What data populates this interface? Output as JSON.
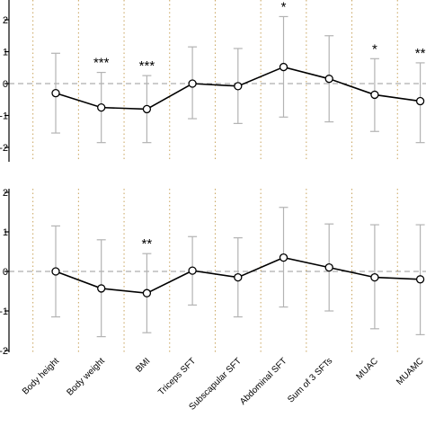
{
  "chart_data": [
    {
      "type": "line",
      "title": "",
      "xlabel": "",
      "ylabel": "",
      "ylim": [
        -2.0,
        2.2
      ],
      "yticks": [
        "-2",
        "-1",
        "0",
        "1",
        "2"
      ],
      "categories": [
        "Body height",
        "Body weight",
        "BMI",
        "Triceps SFT",
        "Subscapular SFT",
        "Abdominal SFT",
        "Sum of 3 SFTs",
        "MUAC",
        "MUAMC"
      ],
      "series": [
        {
          "values": [
            -0.3,
            -0.75,
            -0.8,
            0.0,
            -0.08,
            0.52,
            0.15,
            -0.35,
            -0.55
          ],
          "error_lower": [
            -1.55,
            -1.85,
            -1.85,
            -1.1,
            -1.25,
            -1.05,
            -1.2,
            -1.5,
            -1.85
          ],
          "error_upper": [
            0.95,
            0.35,
            0.25,
            1.15,
            1.1,
            2.1,
            1.5,
            0.78,
            0.65
          ]
        }
      ],
      "annotations": [
        "",
        "***",
        "***",
        "",
        "",
        "*",
        "",
        "*",
        "**"
      ],
      "reference_line": 0,
      "grid": "vertical dotted",
      "line_color": "#000000",
      "errorbar_color": "#b3b3b3"
    },
    {
      "type": "line",
      "title": "",
      "xlabel": "",
      "ylabel": "",
      "ylim": [
        -2.0,
        2.05
      ],
      "yticks": [
        "-2",
        "-1",
        "0",
        "1",
        "2"
      ],
      "categories": [
        "Body height",
        "Body weight",
        "BMI",
        "Triceps SFT",
        "Subscapular SFT",
        "Abdominal SFT",
        "Sum of 3 SFTs",
        "MUAC",
        "MUAMC"
      ],
      "series": [
        {
          "values": [
            0.0,
            -0.43,
            -0.55,
            0.02,
            -0.15,
            0.35,
            0.1,
            -0.15,
            -0.2
          ],
          "error_lower": [
            -1.15,
            -1.65,
            -1.55,
            -0.85,
            -1.15,
            -0.9,
            -1.0,
            -1.45,
            -1.6
          ],
          "error_upper": [
            1.15,
            0.8,
            0.45,
            0.88,
            0.85,
            1.62,
            1.2,
            1.18,
            1.18
          ]
        }
      ],
      "annotations": [
        "",
        "",
        "**",
        "",
        "",
        "",
        "",
        "",
        ""
      ],
      "reference_line": 0,
      "grid": "vertical dotted",
      "line_color": "#000000",
      "errorbar_color": "#b3b3b3"
    }
  ]
}
